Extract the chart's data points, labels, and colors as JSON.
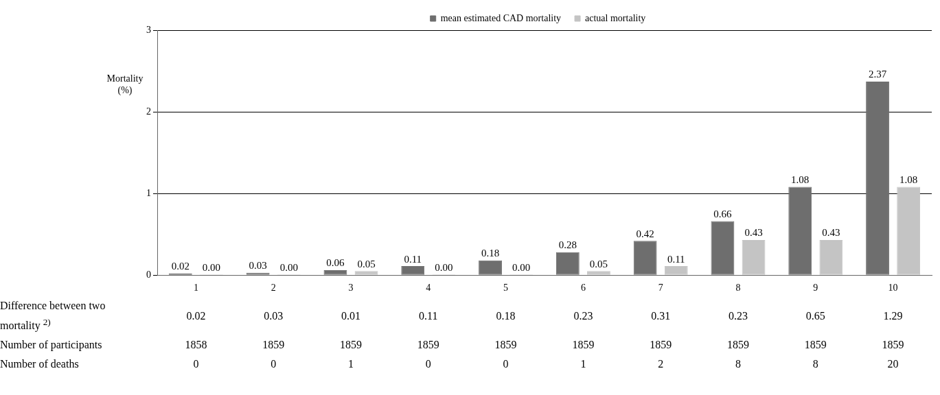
{
  "chart_data": {
    "type": "bar",
    "ylabel": "Mortality (%)",
    "categories": [
      "1",
      "2",
      "3",
      "4",
      "5",
      "6",
      "7",
      "8",
      "9",
      "10"
    ],
    "series": [
      {
        "name": "mean estimated CAD mortality",
        "color": "#6e6e6e",
        "values": [
          0.02,
          0.03,
          0.06,
          0.11,
          0.18,
          0.28,
          0.42,
          0.66,
          1.08,
          2.37
        ],
        "value_labels": [
          "0.02",
          "0.03",
          "0.06",
          "0.11",
          "0.18",
          "0.28",
          "0.42",
          "0.66",
          "1.08",
          "2.37"
        ]
      },
      {
        "name": "actual mortality",
        "color": "#c4c4c4",
        "values": [
          0,
          0,
          0.05,
          0,
          0,
          0.05,
          0.11,
          0.43,
          0.43,
          1.08
        ],
        "value_labels": [
          "0.00",
          "0.00",
          "0.05",
          "0.00",
          "0.00",
          "0.05",
          "0.11",
          "0.43",
          "0.43",
          "1.08"
        ]
      }
    ],
    "ylim": [
      0,
      3
    ],
    "yticks": [
      0,
      1,
      2,
      3
    ],
    "grid": "y",
    "legend": "top",
    "annotations": [
      "Difference between two mortality $^{2)}$",
      "0.02",
      "0.03",
      "0.01",
      "0.11",
      "0.18",
      "0.23",
      "0.31",
      "0.23",
      "0.65",
      "1.29",
      "Number of participants",
      "1858",
      "1859",
      "1859",
      "1859",
      "1859",
      "1859",
      "1859",
      "1859",
      "1859",
      "1859",
      "Number of deaths",
      "0",
      "0",
      "1",
      "0",
      "0",
      "1",
      "2",
      "8",
      "8",
      "20"
    ]
  }
}
